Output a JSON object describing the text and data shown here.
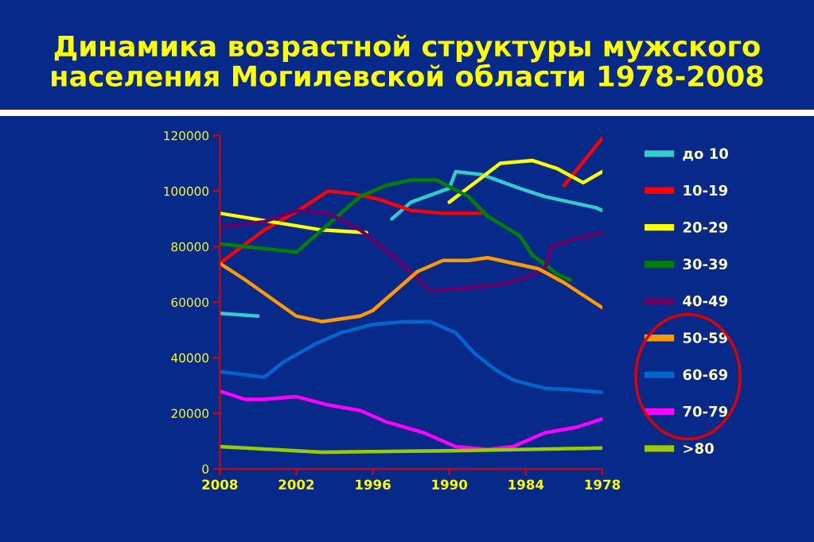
{
  "chart_data": {
    "type": "line",
    "title": "Динамика возрастной структуры мужского\nнаселения Могилевской области 1978-2008",
    "xlim": [
      2008,
      1978
    ],
    "xticks": [
      2008,
      2002,
      1996,
      1990,
      1984,
      1978
    ],
    "ylim": [
      0,
      120000
    ],
    "yticks": [
      0,
      20000,
      40000,
      60000,
      80000,
      100000,
      120000
    ],
    "legend": "right",
    "series": [
      {
        "name": "до 10",
        "color": "#33cccc",
        "x": [
          2008,
          2005,
          2000,
          1994.5,
          1993,
          1990,
          1989.5,
          1987.5,
          1984.5,
          1982.5,
          1978.5,
          1978
        ],
        "values": [
          56000,
          55000,
          null,
          90000,
          96000,
          101000,
          107000,
          106000,
          101000,
          98000,
          94000,
          93000
        ]
      },
      {
        "name": "10-19",
        "color": "#ff0000",
        "x": [
          2008,
          2004.5,
          2001.5,
          1999.5,
          1997.5,
          1995.5,
          1993,
          1990.5,
          1987.5,
          1986,
          1981,
          1978
        ],
        "values": [
          74000,
          86000,
          94000,
          100000,
          99000,
          97000,
          93000,
          92000,
          92000,
          null,
          102000,
          119000
        ]
      },
      {
        "name": "20-29",
        "color": "#ffff00",
        "x": [
          2008,
          2004,
          2000,
          1996.5,
          1993.5,
          1990,
          1988,
          1986,
          1983.5,
          1981.5,
          1979.5,
          1978
        ],
        "values": [
          92000,
          89000,
          86000,
          85000,
          null,
          96000,
          103000,
          110000,
          111000,
          108000,
          103000,
          107000
        ]
      },
      {
        "name": "30-39",
        "color": "#008000",
        "x": [
          2008,
          2002,
          1999.5,
          1997,
          1995,
          1993,
          1991,
          1988.5,
          1987,
          1984.5,
          1983.5,
          1981.5,
          1980.5
        ],
        "values": [
          81000,
          78000,
          88000,
          98000,
          102000,
          104000,
          104000,
          98000,
          91000,
          84000,
          77000,
          70000,
          68000
        ]
      },
      {
        "name": "40-49",
        "color": "#660066",
        "x": [
          2008,
          2004.5,
          2002,
          1999.5,
          1997,
          1994,
          1991.5,
          1989,
          1986.5,
          1984.5,
          1982.5,
          1982,
          1980,
          1978
        ],
        "values": [
          87000,
          89000,
          93000,
          92000,
          86000,
          75000,
          64000,
          65000,
          66000,
          68000,
          72000,
          80000,
          83000,
          85000
        ]
      },
      {
        "name": "50-59",
        "color": "#ff9900",
        "x": [
          2008,
          2006,
          2002,
          2000,
          1997,
          1996,
          1994.5,
          1992.5,
          1990.5,
          1988.5,
          1987,
          1985,
          1983,
          1981,
          1978
        ],
        "values": [
          74000,
          68000,
          55000,
          53000,
          55000,
          57000,
          63000,
          71000,
          75000,
          75000,
          76000,
          74000,
          72000,
          67000,
          58000
        ]
      },
      {
        "name": "60-69",
        "color": "#0066cc",
        "x": [
          2008,
          2004.5,
          2003,
          2000.5,
          1998.5,
          1996,
          1993.5,
          1991.5,
          1989.5,
          1988,
          1986.5,
          1985,
          1982.5,
          1980.5,
          1978
        ],
        "values": [
          35000,
          33000,
          38500,
          45000,
          49000,
          52000,
          53000,
          53000,
          49000,
          41500,
          36000,
          32000,
          29000,
          28500,
          27500
        ]
      },
      {
        "name": "70-79",
        "color": "#ff00ff",
        "x": [
          2008,
          2006,
          2004.5,
          2002,
          1999.5,
          1997,
          1995,
          1992,
          1989.5,
          1987,
          1985,
          1982.5,
          1980,
          1978
        ],
        "values": [
          28000,
          25000,
          25000,
          26000,
          23000,
          21000,
          17000,
          13000,
          8000,
          7000,
          8000,
          13000,
          15000,
          18000
        ]
      },
      {
        "name": ">80",
        "color": "#99cc00",
        "x": [
          2008,
          2000,
          1990,
          1978
        ],
        "values": [
          8000,
          6000,
          6500,
          7500
        ]
      }
    ]
  }
}
